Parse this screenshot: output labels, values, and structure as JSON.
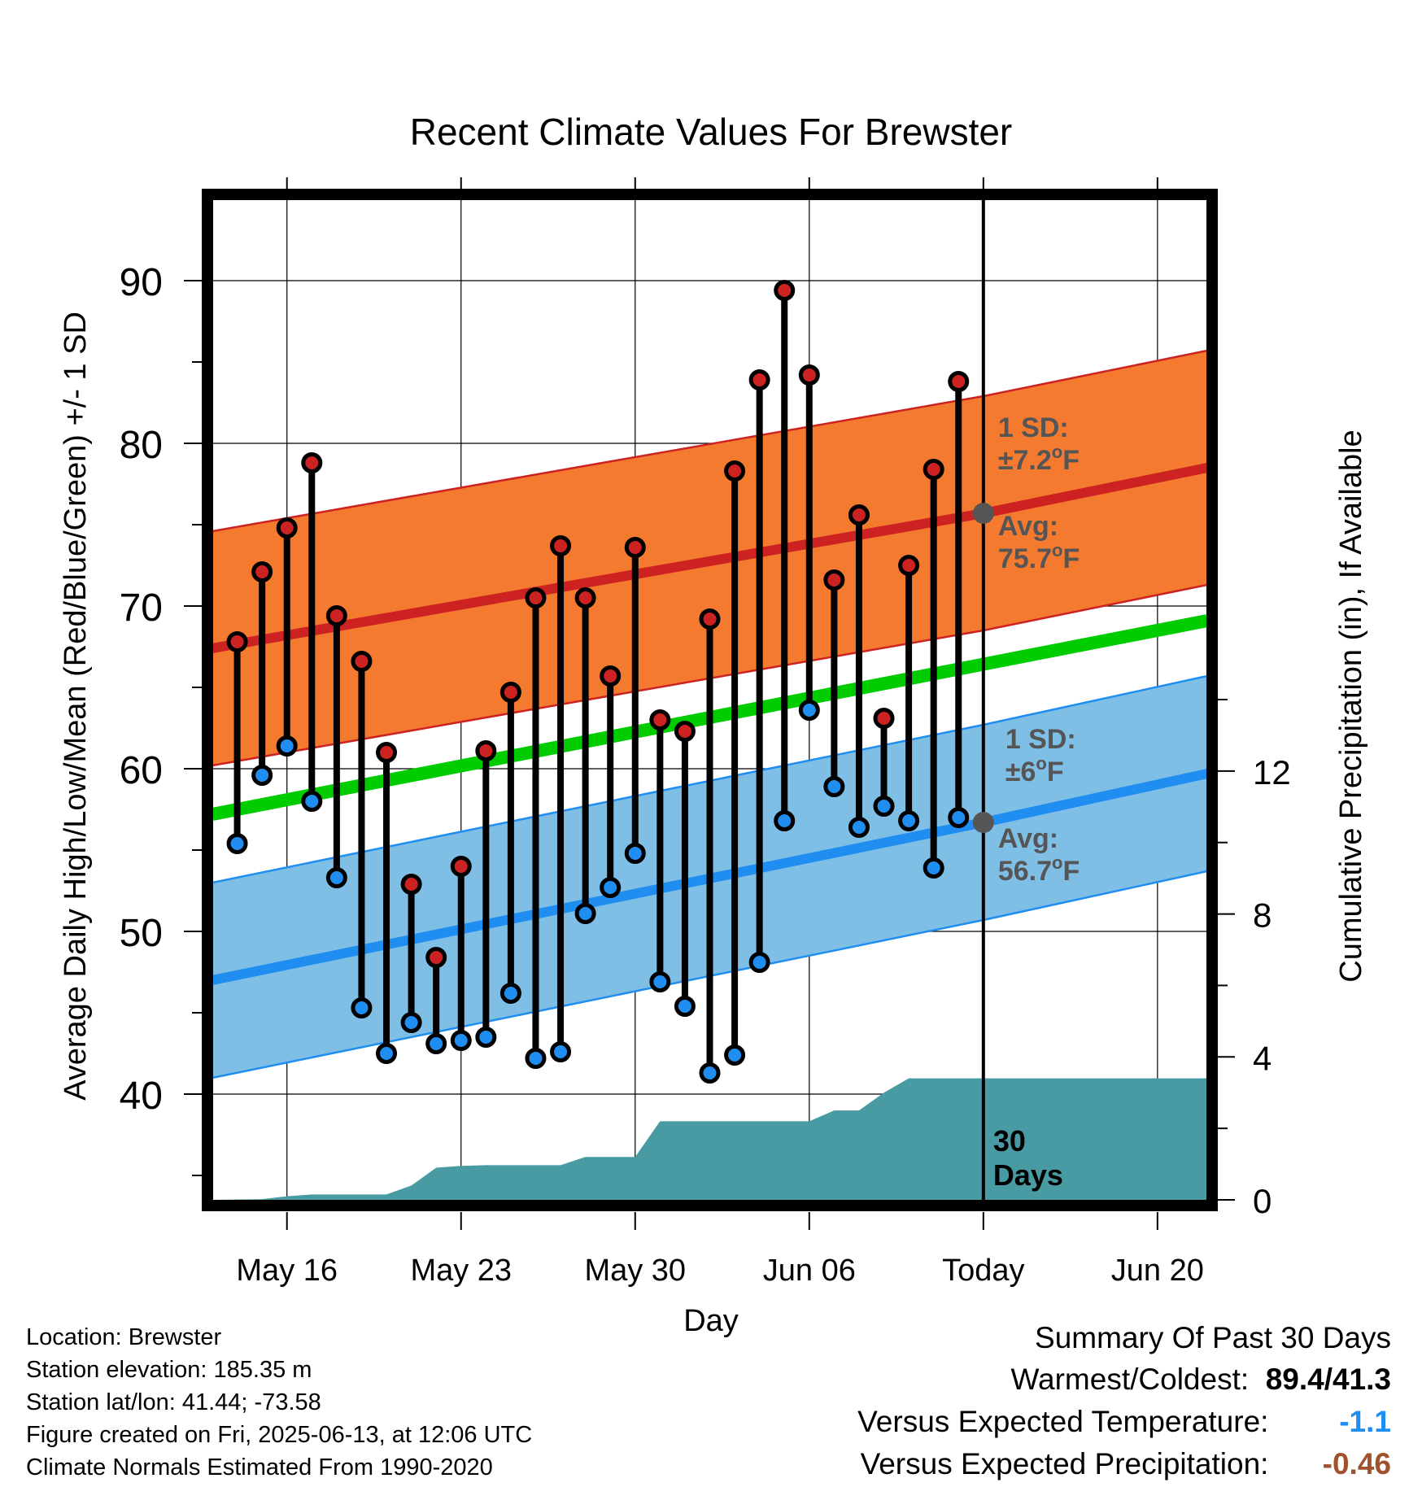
{
  "colors": {
    "high_band": "#f47a30",
    "high_mean_line": "#cc2222",
    "low_band": "#7fbfe6",
    "low_mean_line": "#1f8ef0",
    "normal_mean_line": "#00cc00",
    "precip_fill": "#489aa3",
    "high_marker": "#cc2222",
    "low_marker": "#1f8ef0",
    "annotation": "#555555",
    "warm_value": "#000000",
    "temp_anomaly": "#1f8ef0",
    "precip_anomaly": "#a0522d"
  },
  "chart_data": {
    "type": "line",
    "title": "Recent Climate Values For Brewster",
    "xlabel": "Day",
    "ylabel_left": "Average Daily High/Low/Mean (Red/Blue/Green) +/- 1 SD",
    "ylabel_right": "Cumulative Precipitation (in), If Available",
    "x_ticks": [
      "May 16",
      "May 23",
      "May 30",
      "Jun 06",
      "Today",
      "Jun 20"
    ],
    "xlim": [
      "May 13",
      "Jun 22"
    ],
    "ylim_left": [
      33.5,
      95
    ],
    "y_ticks_left": [
      40,
      50,
      60,
      70,
      80,
      90
    ],
    "ylim_right": [
      0,
      28
    ],
    "y_ticks_right": [
      0,
      4,
      8,
      12
    ],
    "grid": true,
    "today_marker": "Jun 13",
    "today_label": "30\nDays",
    "days": [
      "May 14",
      "May 15",
      "May 16",
      "May 17",
      "May 18",
      "May 19",
      "May 20",
      "May 21",
      "May 22",
      "May 23",
      "May 24",
      "May 25",
      "May 26",
      "May 27",
      "May 28",
      "May 29",
      "May 30",
      "May 31",
      "Jun 01",
      "Jun 02",
      "Jun 03",
      "Jun 04",
      "Jun 05",
      "Jun 06",
      "Jun 07",
      "Jun 08",
      "Jun 09",
      "Jun 10",
      "Jun 11",
      "Jun 12"
    ],
    "daily_high": [
      67.8,
      72.1,
      74.8,
      78.8,
      69.4,
      66.6,
      61.0,
      52.9,
      48.4,
      54.0,
      61.1,
      64.7,
      70.5,
      73.7,
      70.5,
      65.7,
      73.6,
      63.0,
      62.3,
      69.2,
      78.3,
      83.9,
      89.4,
      84.2,
      71.6,
      75.6,
      63.1,
      72.5,
      78.4,
      83.8
    ],
    "daily_low": [
      55.4,
      59.6,
      61.4,
      58.0,
      53.3,
      45.3,
      42.5,
      44.4,
      43.1,
      43.3,
      43.5,
      46.2,
      42.2,
      42.6,
      51.1,
      52.7,
      54.8,
      46.9,
      45.4,
      41.3,
      42.4,
      48.1,
      56.8,
      63.6,
      58.9,
      56.4,
      57.7,
      56.8,
      53.9,
      57.0
    ],
    "normal_high": {
      "start_date": "May 13",
      "start": 67.4,
      "today": 75.7,
      "end_date": "Jun 22",
      "end": 78.5,
      "sd": 7.2
    },
    "normal_low": {
      "start_date": "May 13",
      "start": 47.0,
      "today": 56.7,
      "end_date": "Jun 22",
      "end": 59.7,
      "sd": 6.0
    },
    "normal_mean": {
      "start_date": "May 13",
      "start": 57.2,
      "end_date": "Jun 22",
      "end": 69.1
    },
    "precip_cumulative": {
      "days": [
        "May 13",
        "May 15",
        "May 16",
        "May 17",
        "May 20",
        "May 21",
        "May 22",
        "May 23",
        "May 24",
        "May 25",
        "May 27",
        "May 28",
        "May 30",
        "May 31",
        "Jun 01",
        "Jun 06",
        "Jun 07",
        "Jun 08",
        "Jun 09",
        "Jun 10",
        "Jun 22"
      ],
      "values": [
        0.0,
        0.02,
        0.1,
        0.15,
        0.15,
        0.4,
        0.9,
        0.95,
        0.97,
        0.97,
        0.97,
        1.2,
        1.2,
        2.2,
        2.2,
        2.2,
        2.5,
        2.5,
        3.0,
        3.4,
        3.4
      ]
    },
    "annotations": {
      "high_sd_label": "1 SD:",
      "high_sd_value": "±7.2",
      "high_avg_label": "Avg:",
      "high_avg_value": "75.7",
      "low_sd_label": "1 SD:",
      "low_sd_value": "±6",
      "low_avg_label": "Avg:",
      "low_avg_value": "56.7",
      "deg_symbol": "o",
      "unit": "F"
    }
  },
  "info": {
    "location": "Location: Brewster",
    "elevation": "Station elevation: 185.35 m",
    "latlon": "Station lat/lon: 41.44; -73.58",
    "created": "Figure created on Fri, 2025-06-13, at 12:06 UTC",
    "normals": "Climate Normals Estimated From 1990-2020"
  },
  "summary": {
    "title": "Summary Of Past 30 Days",
    "warm_cold_label": "Warmest/Coldest:",
    "warm_cold_value": "89.4/41.3",
    "temp_label": "Versus Expected Temperature:",
    "temp_value": "-1.1",
    "precip_label": "Versus Expected Precipitation:",
    "precip_value": "-0.46"
  }
}
